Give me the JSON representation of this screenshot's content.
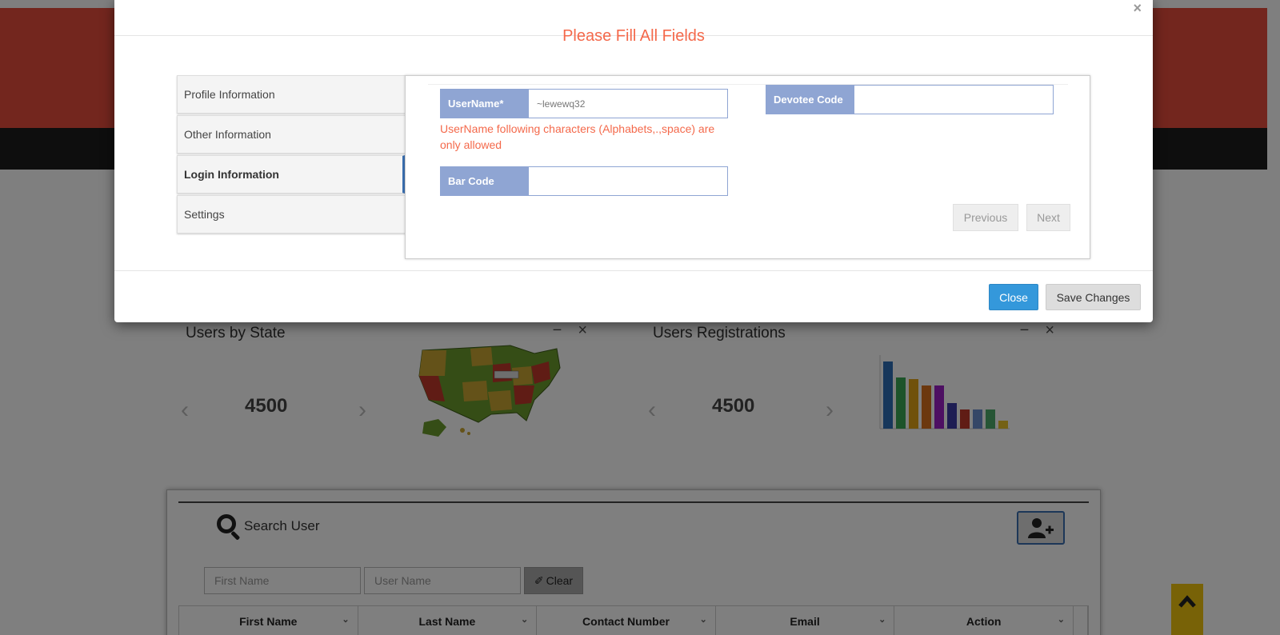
{
  "modal": {
    "close_glyph": "×",
    "title": "Please Fill All Fields",
    "tabs": [
      {
        "label": "Profile Information"
      },
      {
        "label": "Other Information"
      },
      {
        "label": "Login Information"
      },
      {
        "label": "Settings"
      }
    ],
    "active_tab": "Login Information",
    "username": {
      "label": "UserName*",
      "value": "~lewewq32"
    },
    "username_error": "UserName following characters (Alphabets,.,space) are only allowed",
    "devotee_code": {
      "label": "Devotee Code",
      "value": ""
    },
    "bar_code": {
      "label": "Bar Code",
      "value": ""
    },
    "previous_label": "Previous",
    "next_label": "Next",
    "close_label": "Close",
    "save_label": "Save Changes"
  },
  "dashboard": {
    "users_by_state": {
      "title": "Users by State",
      "count": "4500"
    },
    "users_registrations": {
      "title": "Users Registrations",
      "count": "4500"
    }
  },
  "search": {
    "title": "Search User",
    "first_name_placeholder": "First Name",
    "user_name_placeholder": "User Name",
    "clear_label": "Clear",
    "columns": [
      "First Name",
      "Last Name",
      "Contact Number",
      "Email",
      "Action"
    ]
  },
  "colors": {
    "header_red": "#e74c3c",
    "accent_orange": "#f4694b",
    "field_label_blue": "#8fa5d3",
    "close_button_blue": "#3498db",
    "scroll_button_yellow": "#f1c40f"
  }
}
